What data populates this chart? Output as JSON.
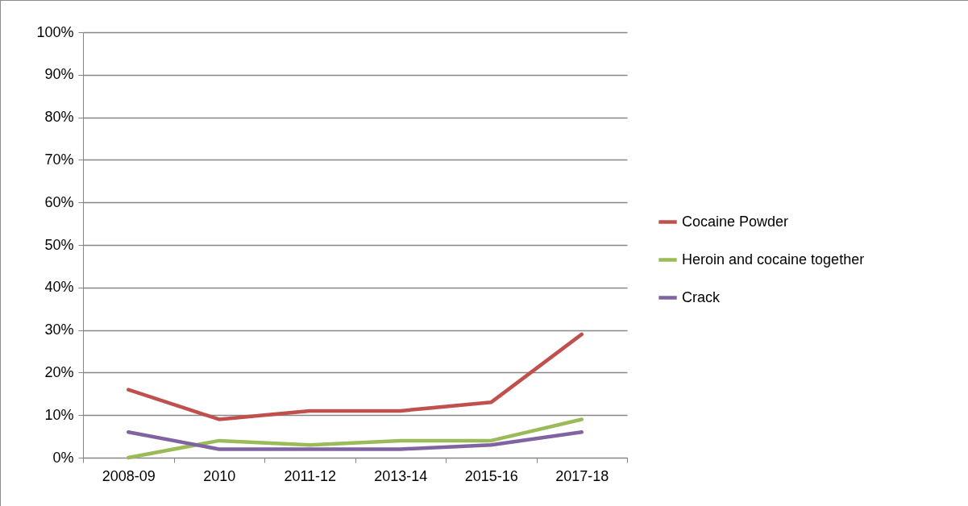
{
  "chart_data": {
    "type": "line",
    "categories": [
      "2008-09",
      "2010",
      "2011-12",
      "2013-14",
      "2015-16",
      "2017-18"
    ],
    "series": [
      {
        "name": "Cocaine Powder",
        "color": "#c0504d",
        "values": [
          16,
          9,
          11,
          11,
          13,
          29
        ]
      },
      {
        "name": "Heroin and cocaine together",
        "color": "#9bbb59",
        "values": [
          0,
          4,
          3,
          4,
          4,
          9
        ]
      },
      {
        "name": "Crack",
        "color": "#8064a2",
        "values": [
          6,
          2,
          2,
          2,
          3,
          6
        ]
      }
    ],
    "ylim": [
      0,
      100
    ],
    "yticks": [
      {
        "value": 0,
        "label": "0%"
      },
      {
        "value": 10,
        "label": "10%"
      },
      {
        "value": 20,
        "label": "20%"
      },
      {
        "value": 30,
        "label": "30%"
      },
      {
        "value": 40,
        "label": "40%"
      },
      {
        "value": 50,
        "label": "50%"
      },
      {
        "value": 60,
        "label": "60%"
      },
      {
        "value": 70,
        "label": "70%"
      },
      {
        "value": 80,
        "label": "80%"
      },
      {
        "value": 90,
        "label": "90%"
      },
      {
        "value": 100,
        "label": "100%"
      }
    ],
    "grid": "y",
    "legend": "right",
    "marker": "none",
    "line_style": "solid"
  }
}
